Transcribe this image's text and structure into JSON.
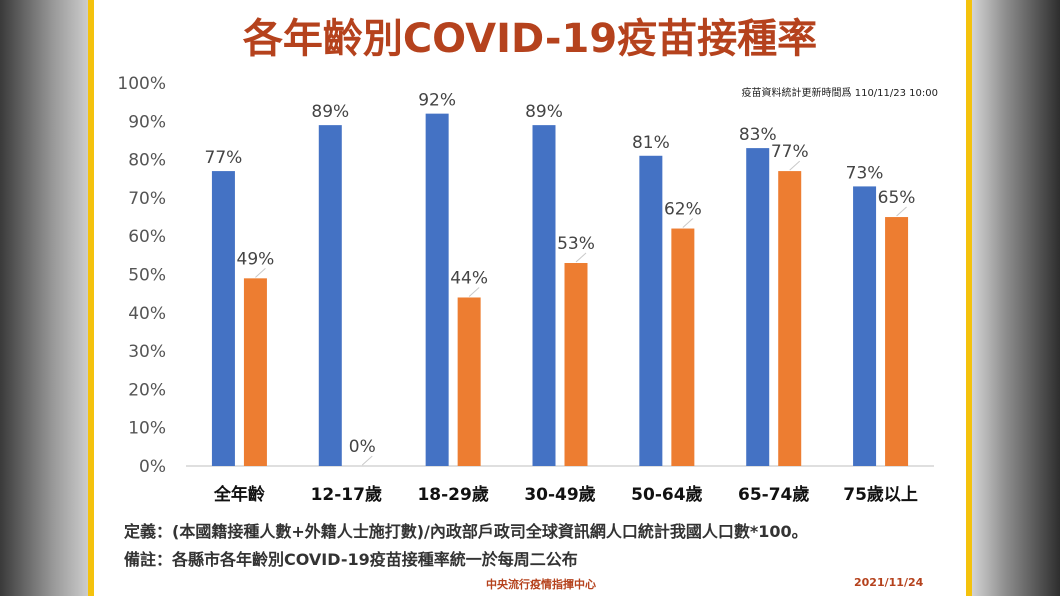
{
  "title": "各年齡別COVID-19疫苗接種率",
  "update_note": "疫苗資料統計更新時間爲 110/11/23 10:00",
  "definition": "定義：(本國籍接種人數+外籍人士施打數)/內政部戶政司全球資訊網人口統計我國人口數*100。",
  "remark": "備註：各縣市各年齡別COVID-19疫苗接種率統一於每周二公布",
  "footer": {
    "org": "中央流行疫情指揮中心",
    "date": "2021/11/24"
  },
  "colors": {
    "series1": "#4472c4",
    "series2": "#ed7d31",
    "title": "#b5421d",
    "frame": "#f4c20d"
  },
  "chart_data": {
    "type": "bar",
    "categories": [
      "全年齡",
      "12-17歲",
      "18-29歲",
      "30-49歲",
      "50-64歲",
      "65-74歲",
      "75歲以上"
    ],
    "series": [
      {
        "values": [
          77,
          89,
          92,
          89,
          81,
          83,
          73
        ],
        "labels": [
          "77%",
          "89%",
          "92%",
          "89%",
          "81%",
          "83%",
          "73%"
        ]
      },
      {
        "values": [
          49,
          0,
          44,
          53,
          62,
          77,
          65
        ],
        "labels": [
          "49%",
          "0%",
          "44%",
          "53%",
          "62%",
          "77%",
          "65%"
        ]
      }
    ],
    "ylim": [
      0,
      100
    ],
    "yticks": [
      "0%",
      "10%",
      "20%",
      "30%",
      "40%",
      "50%",
      "60%",
      "70%",
      "80%",
      "90%",
      "100%"
    ],
    "grid": false,
    "legend": "none"
  }
}
